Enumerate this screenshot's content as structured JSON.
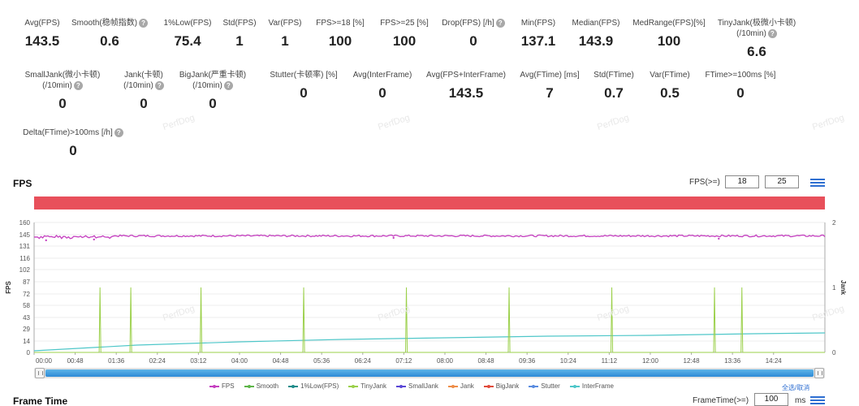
{
  "stats_row1": [
    {
      "label": "Avg(FPS)",
      "value": "143.5",
      "help": false
    },
    {
      "label": "Smooth(稳帧指数)",
      "value": "0.6",
      "help": true
    },
    {
      "label": "1%Low(FPS)",
      "value": "75.4",
      "help": false
    },
    {
      "label": "Std(FPS)",
      "value": "1",
      "help": false
    },
    {
      "label": "Var(FPS)",
      "value": "1",
      "help": false
    },
    {
      "label": "FPS>=18 [%]",
      "value": "100",
      "help": false
    },
    {
      "label": "FPS>=25 [%]",
      "value": "100",
      "help": false
    },
    {
      "label": "Drop(FPS) [/h]",
      "value": "0",
      "help": true
    },
    {
      "label": "Min(FPS)",
      "value": "137.1",
      "help": false
    },
    {
      "label": "Median(FPS)",
      "value": "143.9",
      "help": false
    },
    {
      "label": "MedRange(FPS)[%]",
      "value": "100",
      "help": false
    },
    {
      "label": "TinyJank(极微小卡顿)",
      "label2": "(/10min)",
      "value": "6.6",
      "help": true
    }
  ],
  "stats_row2": [
    {
      "label": "SmallJank(微小卡顿)",
      "label2": "(/10min)",
      "value": "0",
      "help": true
    },
    {
      "label": "Jank(卡顿)",
      "label2": "(/10min)",
      "value": "0",
      "help": true
    },
    {
      "label": "BigJank(严重卡顿)",
      "label2": "(/10min)",
      "value": "0",
      "help": true
    },
    {
      "label": "Stutter(卡顿率) [%]",
      "value": "0",
      "help": false
    },
    {
      "label": "Avg(InterFrame)",
      "value": "0",
      "help": false
    },
    {
      "label": "Avg(FPS+InterFrame)",
      "value": "143.5",
      "help": false
    },
    {
      "label": "Avg(FTime) [ms]",
      "value": "7",
      "help": false
    },
    {
      "label": "Std(FTime)",
      "value": "0.7",
      "help": false
    },
    {
      "label": "Var(FTime)",
      "value": "0.5",
      "help": false
    },
    {
      "label": "FTime>=100ms [%]",
      "value": "0",
      "help": false
    }
  ],
  "stats_row3": [
    {
      "label": "Delta(FTime)>100ms [/h]",
      "value": "0",
      "help": true
    }
  ],
  "fps_section": {
    "title": "FPS",
    "threshold_label": "FPS(>=)",
    "threshold_1": "18",
    "threshold_2": "25"
  },
  "frame_time_section": {
    "title": "Frame Time",
    "threshold_label": "FrameTime(>=)",
    "threshold_value": "100",
    "unit": "ms"
  },
  "legend": [
    {
      "name": "FPS",
      "color": "#c53fc0"
    },
    {
      "name": "Smooth",
      "color": "#5db548"
    },
    {
      "name": "1%Low(FPS)",
      "color": "#1e8c8a"
    },
    {
      "name": "TinyJank",
      "color": "#9bd04a"
    },
    {
      "name": "SmallJank",
      "color": "#5a47d6"
    },
    {
      "name": "Jank",
      "color": "#ee8d48"
    },
    {
      "name": "BigJank",
      "color": "#e14b3b"
    },
    {
      "name": "Stutter",
      "color": "#5a8ce0"
    },
    {
      "name": "InterFrame",
      "color": "#4fc7c9"
    }
  ],
  "legend_select_all": "全选/取消",
  "watermark": "PerfDog",
  "chart_data": {
    "type": "line",
    "ylabel": "FPS",
    "y2label": "Jank",
    "ylim": [
      0,
      160
    ],
    "y_ticks": [
      0,
      14,
      29,
      43,
      58,
      72,
      87,
      102,
      116,
      131,
      145,
      160
    ],
    "y2_ticks": [
      0,
      1,
      2
    ],
    "y2lim": [
      0,
      2
    ],
    "x_ticks": [
      "00:00",
      "00:48",
      "01:36",
      "02:24",
      "03:12",
      "04:00",
      "04:48",
      "05:36",
      "06:24",
      "07:12",
      "08:00",
      "08:48",
      "09:36",
      "10:24",
      "11:12",
      "12:00",
      "12:48",
      "13:36",
      "14:24"
    ],
    "x_range_seconds": [
      0,
      924
    ],
    "series": [
      {
        "name": "FPS",
        "type": "line",
        "values_note": "steady around 143.5",
        "mean": 143.5,
        "min": 137.1
      },
      {
        "name": "1%Low(FPS)",
        "type": "line",
        "x": [
          0,
          120,
          240,
          360,
          480,
          600,
          720,
          840,
          924
        ],
        "y": [
          2,
          9,
          13,
          16,
          18,
          20,
          21,
          23,
          24
        ]
      },
      {
        "name": "TinyJank",
        "type": "spike",
        "x_seconds": [
          77,
          113,
          195,
          315,
          435,
          555,
          675,
          795,
          827
        ],
        "y": [
          1,
          1,
          1,
          1,
          1,
          1,
          1,
          1,
          1
        ]
      }
    ],
    "grid": true,
    "legend_position": "bottom"
  }
}
